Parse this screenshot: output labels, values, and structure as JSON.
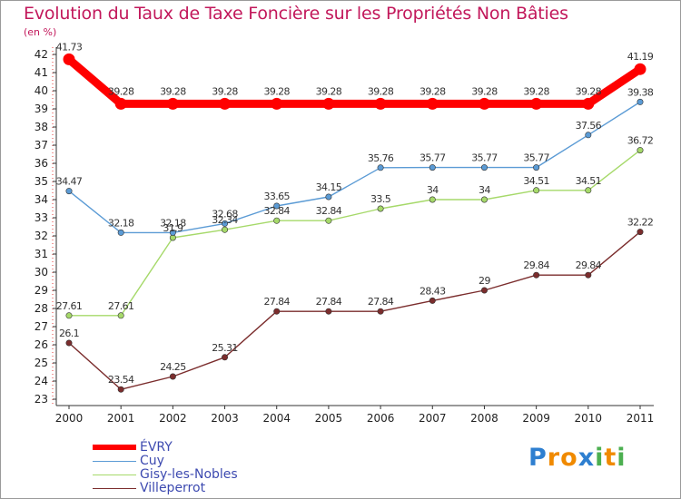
{
  "chart_data": {
    "type": "line",
    "title": "Evolution du Taux de Taxe Foncière sur les Propriétés Non Bâties",
    "ylabel": "(en %)",
    "xlabel": "",
    "ylim": [
      23,
      42
    ],
    "yticks": [
      "23",
      "24",
      "25",
      "26",
      "27",
      "28",
      "29",
      "30",
      "31",
      "32",
      "33",
      "34",
      "35",
      "36",
      "37",
      "38",
      "39",
      "40",
      "41",
      "42"
    ],
    "categories": [
      "2000",
      "2001",
      "2002",
      "2003",
      "2004",
      "2005",
      "2006",
      "2007",
      "2008",
      "2009",
      "2010",
      "2011"
    ],
    "series": [
      {
        "name": "ÉVRY",
        "color": "#ff0000",
        "values": [
          41.73,
          39.28,
          39.28,
          39.28,
          39.28,
          39.28,
          39.28,
          39.28,
          39.28,
          39.28,
          39.28,
          41.19
        ],
        "labels": [
          "41.73",
          "39.28",
          "39.28",
          "39.28",
          "39.28",
          "39.28",
          "39.28",
          "39.28",
          "39.28",
          "39.28",
          "39.28",
          "41.19"
        ]
      },
      {
        "name": "Cuy",
        "color": "#5b9bd5",
        "values": [
          34.47,
          32.18,
          32.18,
          32.68,
          33.65,
          34.15,
          35.76,
          35.77,
          35.77,
          35.77,
          37.56,
          39.38
        ],
        "labels": [
          "34.47",
          "32.18",
          "32.18",
          "32.68",
          "33.65",
          "34.15",
          "35.76",
          "35.77",
          "35.77",
          "35.77",
          "37.56",
          "39.38"
        ]
      },
      {
        "name": "Gisy-les-Nobles",
        "color": "#a6d96a",
        "values": [
          27.61,
          27.61,
          31.9,
          32.34,
          32.84,
          32.84,
          33.5,
          34,
          34,
          34.51,
          34.51,
          36.72
        ],
        "labels": [
          "27.61",
          "27.61",
          "31.9",
          "32.34",
          "32.84",
          "32.84",
          "33.5",
          "34",
          "34",
          "34.51",
          "34.51",
          "36.72"
        ]
      },
      {
        "name": "Villeperrot",
        "color": "#7b2d2d",
        "values": [
          26.1,
          23.54,
          24.25,
          25.31,
          27.84,
          27.84,
          27.84,
          28.43,
          29,
          29.84,
          29.84,
          32.22
        ],
        "labels": [
          "26.1",
          "23.54",
          "24.25",
          "25.31",
          "27.84",
          "27.84",
          "27.84",
          "28.43",
          "29",
          "29.84",
          "29.84",
          "32.22"
        ]
      }
    ],
    "legend_position": "bottom-left",
    "grid": false
  },
  "logo": {
    "letters": [
      "P",
      "r",
      "o",
      "x",
      "i",
      "t",
      "i"
    ],
    "colors": [
      "#2e7fd0",
      "#f08a00",
      "#f08a00",
      "#2e7fd0",
      "#4caf50",
      "#f08a00",
      "#4caf50"
    ]
  }
}
